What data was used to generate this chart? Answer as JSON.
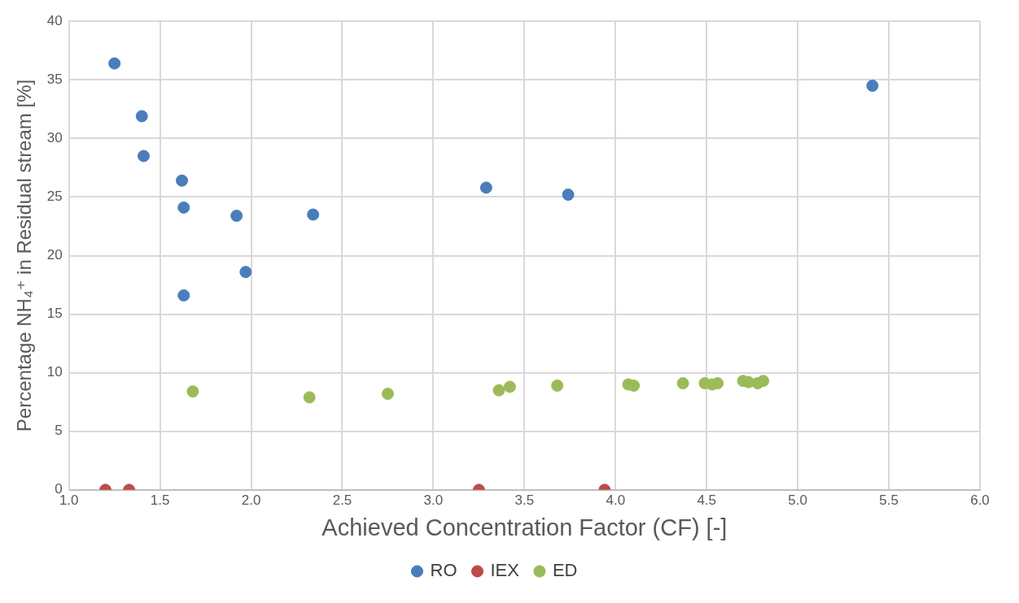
{
  "chart_data": {
    "type": "scatter",
    "xlabel": "Achieved Concentration Factor (CF) [-]",
    "ylabel": "Percentage NH₄⁺ in Residual stream [%]",
    "xlim": [
      1.0,
      6.0
    ],
    "xticks": [
      {
        "value": 1.0,
        "label": "1.0"
      },
      {
        "value": 1.5,
        "label": "1.5"
      },
      {
        "value": 2.0,
        "label": "2.0"
      },
      {
        "value": 2.5,
        "label": "2.5"
      },
      {
        "value": 3.0,
        "label": "3.0"
      },
      {
        "value": 3.5,
        "label": "3.5"
      },
      {
        "value": 4.0,
        "label": "4.0"
      },
      {
        "value": 4.5,
        "label": "4.5"
      },
      {
        "value": 5.0,
        "label": "5.0"
      },
      {
        "value": 5.5,
        "label": "5.5"
      },
      {
        "value": 6.0,
        "label": "6.0"
      }
    ],
    "ylim": [
      0,
      40
    ],
    "yticks": [
      0,
      5,
      10,
      15,
      20,
      25,
      30,
      35,
      40
    ],
    "grid": true,
    "legend": "bottom",
    "marker": "circle",
    "series": [
      {
        "name": "RO",
        "color": "#4a7ebb",
        "x": [
          1.25,
          1.4,
          1.41,
          1.62,
          1.63,
          1.92,
          2.34,
          1.97,
          1.63,
          3.29,
          3.74,
          5.41
        ],
        "values": [
          36.4,
          31.9,
          28.5,
          26.4,
          24.1,
          23.4,
          23.5,
          18.6,
          16.6,
          25.8,
          25.2,
          34.5
        ]
      },
      {
        "name": "IEX",
        "color": "#be4b48",
        "x": [
          1.2,
          1.33,
          3.25,
          3.94
        ],
        "values": [
          0,
          0,
          0,
          0
        ]
      },
      {
        "name": "ED",
        "color": "#9bbb59",
        "x": [
          1.68,
          2.32,
          2.75,
          3.36,
          3.42,
          3.68,
          4.07,
          4.1,
          4.37,
          4.49,
          4.53,
          4.56,
          4.7,
          4.73,
          4.78,
          4.81
        ],
        "values": [
          8.4,
          7.9,
          8.2,
          8.5,
          8.8,
          8.9,
          9.0,
          8.9,
          9.1,
          9.1,
          9.0,
          9.1,
          9.3,
          9.2,
          9.1,
          9.3
        ]
      }
    ]
  }
}
